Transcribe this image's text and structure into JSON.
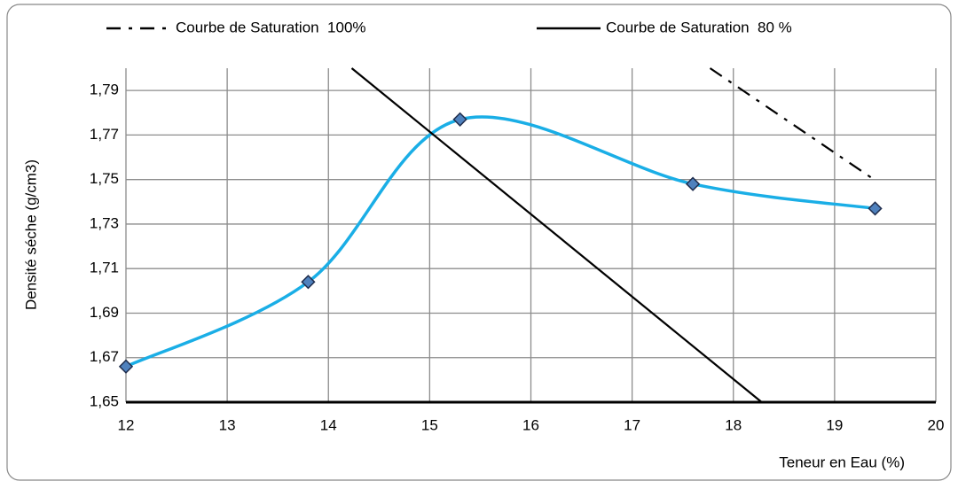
{
  "chart_data": {
    "type": "line",
    "xlabel": "Teneur en Eau (%)",
    "ylabel": "Densité séche (g/cm3)",
    "xlim": [
      12,
      20
    ],
    "xticks": [
      12,
      13,
      14,
      15,
      16,
      17,
      18,
      19,
      20
    ],
    "ylim": [
      1.65,
      1.8
    ],
    "yticks": [
      {
        "value": 1.65,
        "label": "1,65"
      },
      {
        "value": 1.67,
        "label": "1,67"
      },
      {
        "value": 1.69,
        "label": "1,69"
      },
      {
        "value": 1.71,
        "label": "1,71"
      },
      {
        "value": 1.73,
        "label": "1,73"
      },
      {
        "value": 1.75,
        "label": "1,75"
      },
      {
        "value": 1.77,
        "label": "1,77"
      },
      {
        "value": 1.79,
        "label": "1,79"
      }
    ],
    "grid": true,
    "series": [
      {
        "color": "#1aaee6",
        "smooth": true,
        "markers": true,
        "x": [
          12,
          13.8,
          15.3,
          17.6,
          19.4
        ],
        "values": [
          1.666,
          1.704,
          1.777,
          1.748,
          1.737
        ]
      },
      {
        "name": "Courbe de Saturation  100%",
        "color": "#000000",
        "dash": "dashdot",
        "x": [
          17.77,
          19.39
        ],
        "values": [
          1.8,
          1.75
        ]
      },
      {
        "name": "Courbe de Saturation  80 %",
        "color": "#000000",
        "dash": "solid",
        "x": [
          14.23,
          18.28
        ],
        "values": [
          1.8,
          1.65
        ]
      }
    ]
  }
}
